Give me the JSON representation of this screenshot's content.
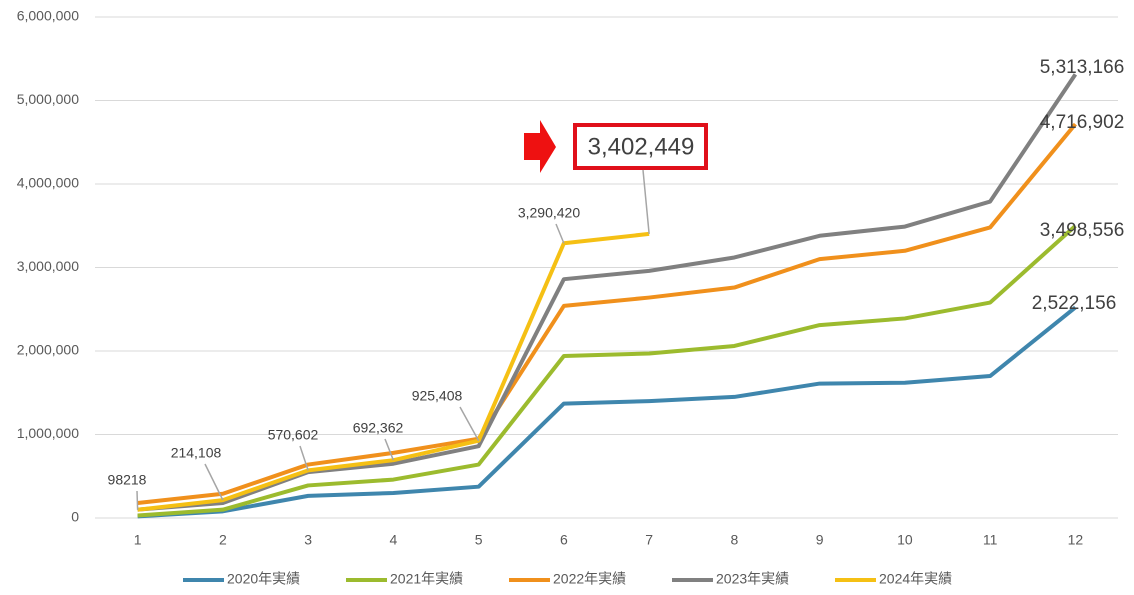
{
  "chart_data": {
    "type": "line",
    "categories": [
      "1",
      "2",
      "3",
      "4",
      "5",
      "6",
      "7",
      "8",
      "9",
      "10",
      "11",
      "12"
    ],
    "ylim": [
      0,
      6000000
    ],
    "yticks": [
      0,
      {
        "value": 1000000,
        "label": "1,000,000"
      },
      {
        "value": 2000000,
        "label": "2,000,000"
      },
      {
        "value": 3000000,
        "label": "3,000,000"
      },
      {
        "value": 4000000,
        "label": "4,000,000"
      },
      {
        "value": 5000000,
        "label": "5,000,000"
      },
      {
        "value": 6000000,
        "label": "6,000,000"
      }
    ],
    "grid": true,
    "legend": "bottom",
    "series": [
      {
        "name": "2020年実績",
        "color": "#3f86ad",
        "values": [
          20000,
          80000,
          265000,
          300000,
          375000,
          1370000,
          1400000,
          1450000,
          1610000,
          1620000,
          1700000,
          2522156
        ],
        "value_labels": [
          null,
          null,
          null,
          null,
          null,
          null,
          null,
          null,
          null,
          null,
          null,
          "2,522,156"
        ]
      },
      {
        "name": "2021年実績",
        "color": "#9cbb2e",
        "values": [
          30000,
          100000,
          390000,
          460000,
          640000,
          1940000,
          1970000,
          2060000,
          2310000,
          2390000,
          2580000,
          3498556
        ],
        "value_labels": [
          null,
          null,
          null,
          null,
          null,
          null,
          null,
          null,
          null,
          null,
          null,
          "3,498,556"
        ]
      },
      {
        "name": "2022年実績",
        "color": "#f0901c",
        "values": [
          180000,
          290000,
          640000,
          780000,
          950000,
          2540000,
          2640000,
          2760000,
          3100000,
          3200000,
          3480000,
          4716902
        ],
        "value_labels": [
          null,
          null,
          null,
          null,
          null,
          null,
          null,
          null,
          null,
          null,
          null,
          "4,716,902"
        ]
      },
      {
        "name": "2023年実績",
        "color": "#808080",
        "values": [
          100000,
          180000,
          550000,
          650000,
          860000,
          2860000,
          2960000,
          3120000,
          3380000,
          3490000,
          3790000,
          5313166
        ],
        "value_labels": [
          null,
          null,
          null,
          null,
          null,
          null,
          null,
          null,
          null,
          null,
          null,
          "5,313,166"
        ]
      },
      {
        "name": "2024年実績",
        "color": "#f5c014",
        "values": [
          98218,
          214108,
          570602,
          692362,
          925408,
          3290420,
          3402449,
          null,
          null,
          null,
          null,
          null
        ],
        "value_labels": [
          "98218",
          "214,108",
          "570,602",
          "692,362",
          "925,408",
          "3,290,420",
          "3,402,449",
          null,
          null,
          null,
          null,
          null
        ]
      }
    ]
  }
}
